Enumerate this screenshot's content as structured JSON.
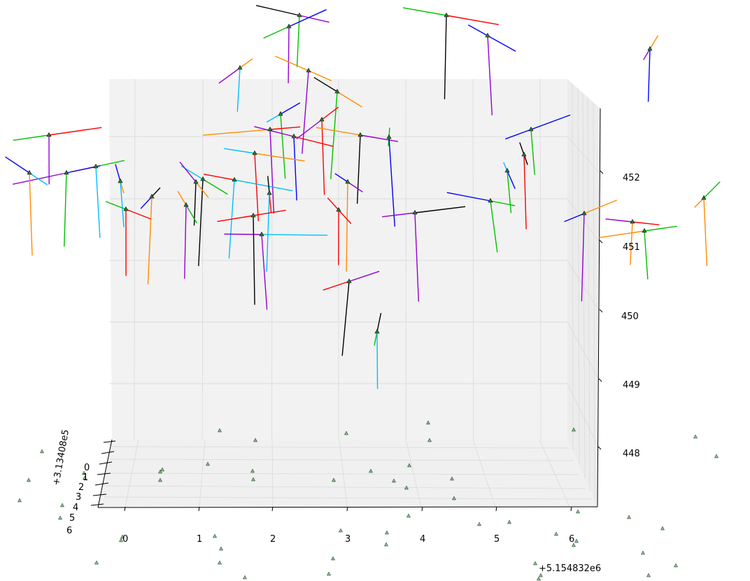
{
  "chart_data": {
    "type": "scatter-3d-orientation-frames",
    "x_axis": {
      "ticks": [
        "0",
        "1",
        "2",
        "3",
        "4",
        "5",
        "6"
      ],
      "offset_label": "+5.154832e6"
    },
    "y_axis": {
      "ticks": [
        "0",
        "1",
        "2",
        "3",
        "4",
        "5",
        "6"
      ],
      "offset_label": "+3.13408e5"
    },
    "z_axis": {
      "ticks": [
        "448",
        "449",
        "450",
        "451",
        "452"
      ],
      "range": [
        447.5,
        452.7
      ]
    },
    "grid": true,
    "marker": "triangle",
    "marker_color": "#2e7d32",
    "frame_colors": [
      "#ff0000",
      "#00bfff",
      "#00c000",
      "#ff8c00",
      "#9400d3",
      "#0000ff",
      "#000000"
    ]
  }
}
